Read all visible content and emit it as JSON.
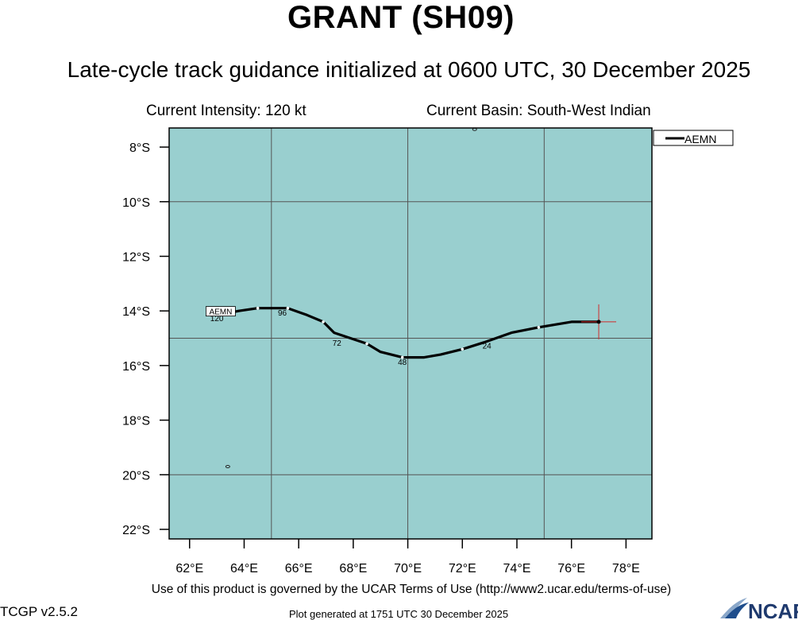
{
  "header": {
    "title": "GRANT (SH09)",
    "subtitle": "Late-cycle track guidance initialized at 0600 UTC, 30 December 2025",
    "current_intensity": "Current Intensity: 120 kt",
    "current_basin": "Current Basin: South-West Indian"
  },
  "legend": {
    "entries": [
      {
        "name": "AEMN",
        "color": "#000000"
      }
    ]
  },
  "map": {
    "ocean_color": "#99cfcf",
    "lat_ticks": [
      "8°S",
      "10°S",
      "12°S",
      "14°S",
      "16°S",
      "18°S",
      "20°S",
      "22°S"
    ],
    "lon_ticks": [
      "62°E",
      "64°E",
      "66°E",
      "68°E",
      "70°E",
      "72°E",
      "74°E",
      "76°E",
      "78°E"
    ],
    "current_position": {
      "lon": 77.0,
      "lat": -14.4
    },
    "track": {
      "name": "AEMN",
      "label": "AEMN",
      "points": [
        {
          "lon": 77.0,
          "lat": -14.4
        },
        {
          "lon": 76.0,
          "lat": -14.4
        },
        {
          "lon": 74.8,
          "lat": -14.6
        },
        {
          "lon": 73.8,
          "lat": -14.8
        },
        {
          "lon": 72.8,
          "lat": -15.15
        },
        {
          "lon": 72.0,
          "lat": -15.4
        },
        {
          "lon": 71.2,
          "lat": -15.6
        },
        {
          "lon": 70.6,
          "lat": -15.7
        },
        {
          "lon": 69.8,
          "lat": -15.7
        },
        {
          "lon": 69.0,
          "lat": -15.5
        },
        {
          "lon": 68.5,
          "lat": -15.2
        },
        {
          "lon": 67.9,
          "lat": -15.0
        },
        {
          "lon": 67.3,
          "lat": -14.8
        },
        {
          "lon": 66.9,
          "lat": -14.4
        },
        {
          "lon": 66.3,
          "lat": -14.15
        },
        {
          "lon": 65.6,
          "lat": -13.9
        },
        {
          "lon": 65.0,
          "lat": -13.9
        },
        {
          "lon": 64.5,
          "lat": -13.9
        },
        {
          "lon": 63.8,
          "lat": -14.0
        },
        {
          "lon": 63.3,
          "lat": -14.1
        }
      ],
      "hour_labels": [
        {
          "text": "24",
          "lon": 72.9,
          "lat": -15.2
        },
        {
          "text": "48",
          "lon": 69.8,
          "lat": -15.8
        },
        {
          "text": "72",
          "lon": 67.4,
          "lat": -15.1
        },
        {
          "text": "96",
          "lon": 65.4,
          "lat": -14.0
        },
        {
          "text": "120",
          "lon": 63.0,
          "lat": -14.2
        }
      ]
    },
    "islands": [
      {
        "lon": 72.45,
        "lat": -7.35
      },
      {
        "lon": 63.4,
        "lat": -19.7
      }
    ]
  },
  "footer": {
    "terms": "Use of this product is governed by the UCAR Terms of Use (http://www2.ucar.edu/terms-of-use)",
    "version": "TCGP v2.5.2",
    "generated": "Plot generated at 1751 UTC   30 December 2025",
    "logo_text": "NCAR"
  }
}
